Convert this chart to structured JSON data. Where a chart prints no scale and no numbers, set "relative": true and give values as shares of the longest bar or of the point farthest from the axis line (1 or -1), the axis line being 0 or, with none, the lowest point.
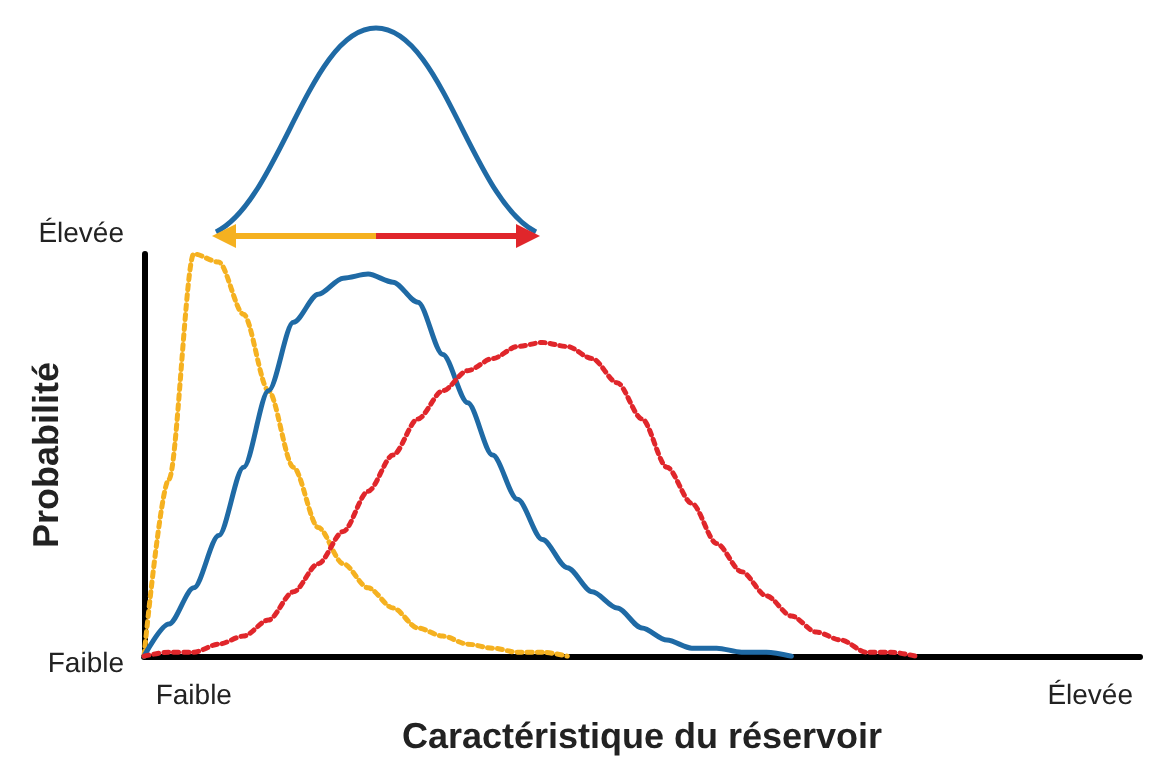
{
  "chart_data": {
    "type": "line",
    "relative": true,
    "xlabel": "Caractéristique du réservoir",
    "ylabel": "Probabilité",
    "annotations": [
      "Élevée",
      "Faible"
    ],
    "categories": [
      null,
      null,
      "Faible",
      null,
      null,
      null,
      null,
      null,
      null,
      null,
      null,
      null,
      null,
      null,
      null,
      null,
      null,
      null,
      null,
      null,
      null,
      null,
      null,
      null,
      null,
      null,
      null,
      null,
      null,
      null,
      null,
      null,
      null,
      null,
      null,
      null,
      null,
      null,
      "Élevée",
      null,
      null
    ],
    "series": [
      {
        "color": "#f5b120",
        "line_style": "dotted",
        "values": [
          0,
          0.44,
          1,
          0.98,
          0.85,
          0.66,
          0.47,
          0.32,
          0.23,
          0.17,
          0.12,
          0.07,
          0.05,
          0.03,
          0.02,
          0.01,
          0.01,
          0,
          null,
          null,
          null,
          null,
          null,
          null,
          null,
          null,
          null,
          null,
          null,
          null,
          null,
          null,
          null,
          null,
          null,
          null,
          null,
          null,
          null,
          null,
          null
        ]
      },
      {
        "color": "#1f6aa5",
        "line_style": "solid",
        "values": [
          0,
          0.08,
          0.17,
          0.3,
          0.47,
          0.66,
          0.83,
          0.9,
          0.94,
          0.95,
          0.93,
          0.88,
          0.75,
          0.63,
          0.5,
          0.39,
          0.29,
          0.22,
          0.16,
          0.12,
          0.07,
          0.04,
          0.02,
          0.02,
          0.01,
          0.01,
          0,
          null,
          null,
          null,
          null,
          null,
          null,
          null,
          null,
          null,
          null,
          null,
          null,
          null,
          null
        ]
      },
      {
        "color": "#e0262b",
        "line_style": "dotted",
        "values": [
          0,
          0.01,
          0.01,
          0.03,
          0.05,
          0.09,
          0.16,
          0.23,
          0.31,
          0.41,
          0.5,
          0.59,
          0.66,
          0.71,
          0.74,
          0.77,
          0.78,
          0.77,
          0.74,
          0.68,
          0.59,
          0.47,
          0.38,
          0.28,
          0.21,
          0.15,
          0.1,
          0.06,
          0.04,
          0.01,
          0.01,
          0,
          null,
          null,
          null,
          null,
          null,
          null,
          null,
          null,
          null
        ]
      }
    ]
  }
}
